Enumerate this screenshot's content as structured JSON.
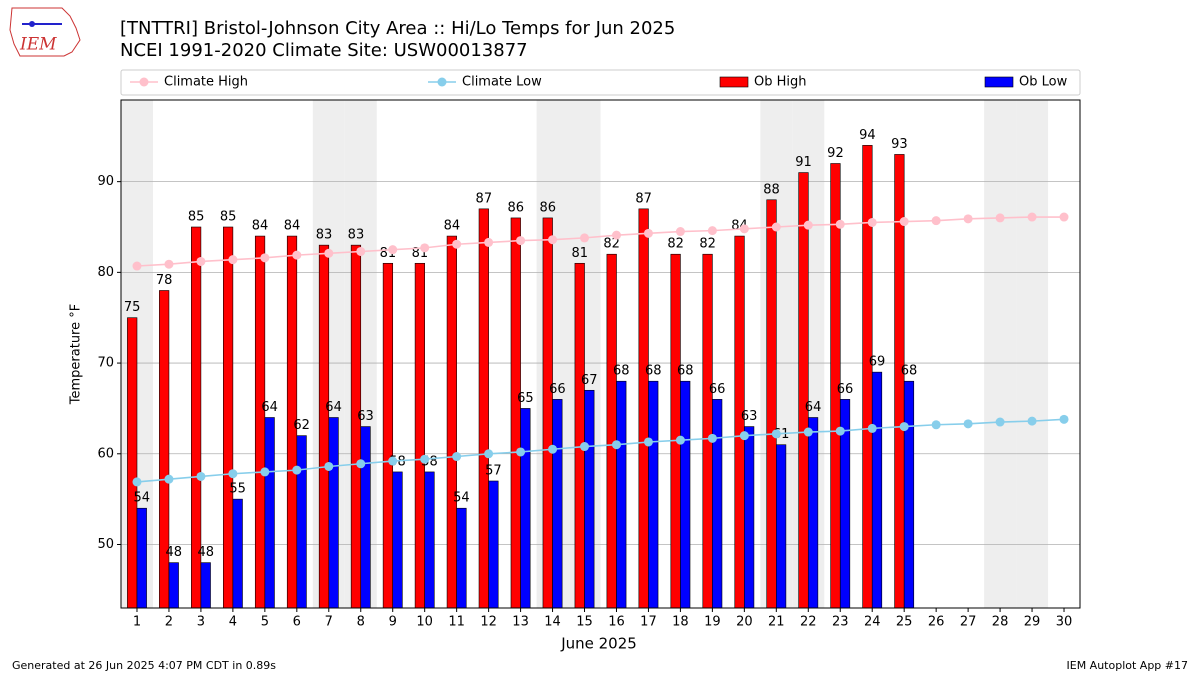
{
  "logo_text": "IEM",
  "footer_left": "Generated at 26 Jun 2025 4:07 PM CDT in 0.89s",
  "footer_right": "IEM Autoplot App #17",
  "chart_data": {
    "type": "bar",
    "title": "[TNTTRI] Bristol-Johnson City Area :: Hi/Lo Temps for Jun 2025",
    "subtitle": "NCEI 1991-2020 Climate Site: USW00013877",
    "xlabel": "June 2025",
    "ylabel": "Temperature °F",
    "x": [
      1,
      2,
      3,
      4,
      5,
      6,
      7,
      8,
      9,
      10,
      11,
      12,
      13,
      14,
      15,
      16,
      17,
      18,
      19,
      20,
      21,
      22,
      23,
      24,
      25,
      26,
      27,
      28,
      29,
      30
    ],
    "xlim": [
      0.5,
      30.5
    ],
    "xticks": [
      1,
      2,
      3,
      4,
      5,
      6,
      7,
      8,
      9,
      10,
      11,
      12,
      13,
      14,
      15,
      16,
      17,
      18,
      19,
      20,
      21,
      22,
      23,
      24,
      25,
      26,
      27,
      28,
      29,
      30
    ],
    "ylim": [
      43,
      99
    ],
    "yticks": [
      50,
      60,
      70,
      80,
      90
    ],
    "grid": true,
    "shaded_days": [
      1,
      7,
      8,
      14,
      15,
      21,
      22,
      28,
      29
    ],
    "shade_color": "#eeeeee",
    "series": [
      {
        "name": "Climate High",
        "type": "line",
        "color": "#ffc0cb",
        "values": [
          80.7,
          80.9,
          81.2,
          81.4,
          81.6,
          81.9,
          82.1,
          82.3,
          82.5,
          82.7,
          83.1,
          83.3,
          83.5,
          83.6,
          83.8,
          84.1,
          84.3,
          84.5,
          84.6,
          84.8,
          85.0,
          85.2,
          85.3,
          85.5,
          85.6,
          85.7,
          85.9,
          86.0,
          86.1,
          86.1
        ]
      },
      {
        "name": "Climate Low",
        "type": "line",
        "color": "#87ceeb",
        "values": [
          56.9,
          57.2,
          57.5,
          57.8,
          58.0,
          58.2,
          58.6,
          58.9,
          59.2,
          59.4,
          59.7,
          60.0,
          60.2,
          60.5,
          60.8,
          61.0,
          61.3,
          61.5,
          61.7,
          62.0,
          62.2,
          62.4,
          62.5,
          62.8,
          63.0,
          63.2,
          63.3,
          63.5,
          63.6,
          63.8
        ]
      },
      {
        "name": "Ob High",
        "type": "bar",
        "color": "#ff0000",
        "values": [
          75,
          78,
          85,
          85,
          84,
          84,
          83,
          83,
          81,
          81,
          84,
          87,
          86,
          86,
          81,
          82,
          87,
          82,
          82,
          84,
          88,
          91,
          92,
          94,
          93,
          null,
          null,
          null,
          null,
          null
        ]
      },
      {
        "name": "Ob Low",
        "type": "bar",
        "color": "#0000ff",
        "values": [
          54,
          48,
          48,
          55,
          64,
          62,
          64,
          63,
          58,
          58,
          54,
          57,
          65,
          66,
          67,
          68,
          68,
          68,
          66,
          63,
          61,
          64,
          66,
          69,
          68,
          null,
          null,
          null,
          null,
          null
        ]
      }
    ]
  }
}
